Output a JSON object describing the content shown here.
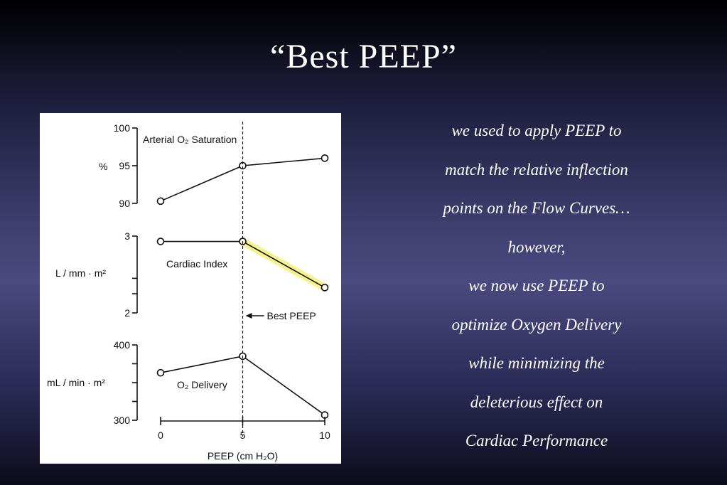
{
  "slide": {
    "title": "“Best PEEP”",
    "notes": [
      "we used to apply PEEP to",
      "match the relative inflection",
      "points on the Flow Curves…",
      "however,",
      "we now use PEEP to",
      "optimize Oxygen Delivery",
      "while minimizing the",
      "deleterious effect on",
      "Cardiac Performance"
    ]
  },
  "colors": {
    "background": "#3d3d6c",
    "title_text": "#ffffff",
    "highlight": "#f5f07a"
  },
  "chart_data": [
    {
      "type": "line",
      "title": "Arterial O₂ Saturation",
      "ylabel": "%",
      "ylim": [
        90,
        100
      ],
      "yticks": [
        "100",
        "95",
        "90"
      ],
      "x": [
        0,
        5,
        10
      ],
      "values": [
        90.3,
        95,
        96
      ]
    },
    {
      "type": "line",
      "title": "Cardiac Index",
      "ylabel": "L / mm · m²",
      "ylim": [
        2,
        3
      ],
      "yticks": [
        "3",
        "2"
      ],
      "x": [
        0,
        5,
        10
      ],
      "values": [
        2.93,
        2.93,
        2.33
      ],
      "highlighted_segment": [
        5,
        10
      ]
    },
    {
      "type": "line",
      "title": "O₂ Delivery",
      "ylabel": "mL / min · m²",
      "ylim": [
        300,
        400
      ],
      "yticks": [
        "400",
        "300"
      ],
      "x": [
        0,
        5,
        10
      ],
      "values": [
        363,
        385,
        307
      ]
    }
  ],
  "xaxis": {
    "label": "PEEP (cm H₂O)",
    "ticks": [
      "0",
      "5",
      "10"
    ]
  },
  "annotation": {
    "best_peep_label": "Best PEEP",
    "best_peep_x": 5
  }
}
